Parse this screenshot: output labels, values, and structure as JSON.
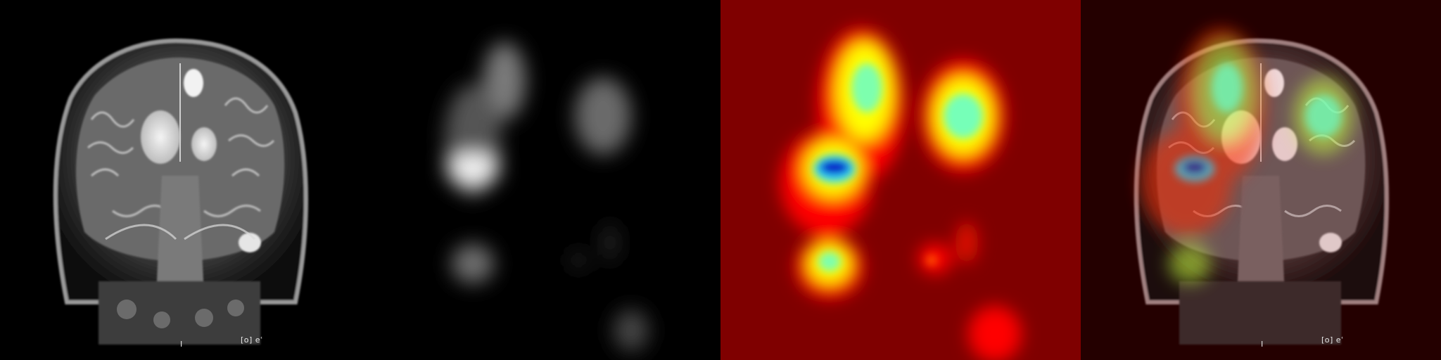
{
  "image": {
    "description_panels": [
      "mri-coronal-t2",
      "saliency-grayscale",
      "saliency-jet-colormap",
      "saliency-overlay"
    ],
    "colormap": {
      "low": "#7f0000",
      "mid_low": "#ff0000",
      "mid": "#ffff00",
      "mid_high": "#00ffff",
      "high": "#00007f"
    }
  },
  "mri": {
    "marker_left": "I",
    "marker_right": "[o] eʿ"
  }
}
